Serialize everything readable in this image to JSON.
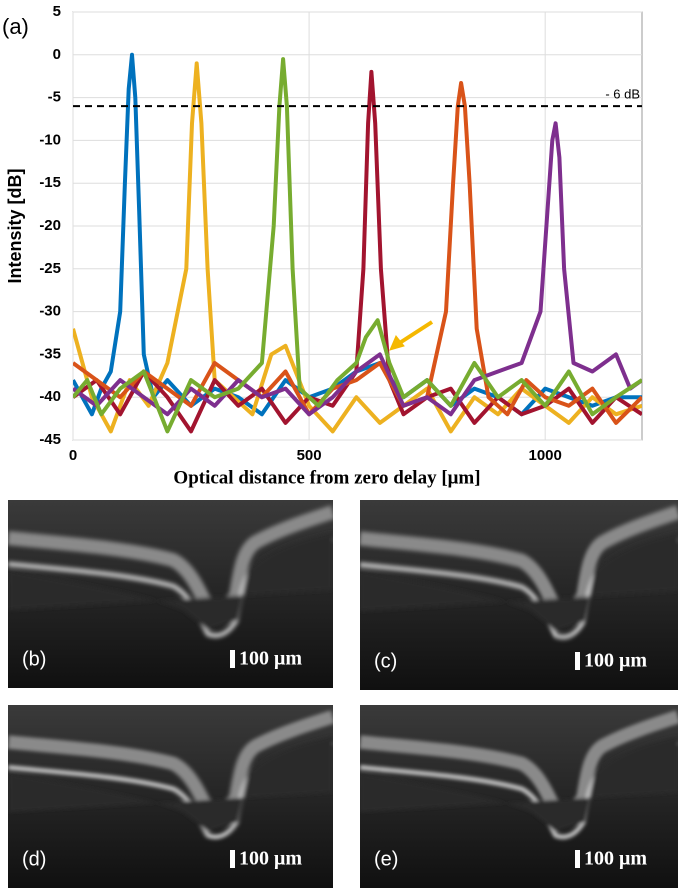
{
  "chart_data": {
    "type": "line",
    "panel_label": "(a)",
    "xlabel": "Optical distance from zero delay [μm]",
    "ylabel": "Intensity [dB]",
    "xlim": [
      0,
      1205
    ],
    "ylim": [
      -45,
      5
    ],
    "xticks": [
      0,
      500,
      1000
    ],
    "yticks": [
      5,
      0,
      -5,
      -10,
      -15,
      -20,
      -25,
      -30,
      -35,
      -40,
      -45
    ],
    "grid": true,
    "reference_line": {
      "value": -6,
      "label": "- 6 dB",
      "color": "#000000"
    },
    "arrow_color": "#f5b800",
    "series": [
      {
        "color": "#0072bd",
        "x": [
          0,
          20,
          40,
          60,
          80,
          100,
          110,
          118,
          125,
          132,
          140,
          150,
          170,
          200,
          250,
          300,
          350,
          400,
          450,
          500,
          550,
          600,
          650,
          700,
          750,
          800,
          850,
          900,
          950,
          1000,
          1050,
          1100,
          1150,
          1205
        ],
        "values": [
          -38,
          -40,
          -42,
          -39,
          -37,
          -30,
          -15,
          -4,
          0,
          -5,
          -18,
          -35,
          -40,
          -38,
          -41,
          -39,
          -40,
          -42,
          -38,
          -40,
          -39,
          -37,
          -36,
          -40,
          -38,
          -41,
          -39,
          -40,
          -42,
          -39,
          -40,
          -41,
          -40,
          -40
        ]
      },
      {
        "color": "#edb120",
        "x": [
          0,
          40,
          80,
          120,
          160,
          200,
          240,
          252,
          262,
          272,
          285,
          300,
          340,
          380,
          420,
          450,
          500,
          550,
          600,
          650,
          700,
          750,
          800,
          850,
          900,
          950,
          1000,
          1050,
          1100,
          1150,
          1205
        ],
        "values": [
          -32,
          -40,
          -44,
          -38,
          -41,
          -36,
          -25,
          -8,
          -1,
          -8,
          -25,
          -38,
          -40,
          -42,
          -35,
          -34,
          -41,
          -44,
          -40,
          -43,
          -41,
          -39,
          -44,
          -40,
          -42,
          -39,
          -41,
          -43,
          -40,
          -42,
          -41
        ]
      },
      {
        "color": "#a2142f",
        "x": [
          0,
          50,
          100,
          150,
          200,
          250,
          300,
          350,
          400,
          450,
          500,
          550,
          600,
          615,
          625,
          632,
          640,
          652,
          670,
          700,
          750,
          800,
          850,
          900,
          950,
          1000,
          1050,
          1100,
          1150,
          1205
        ],
        "values": [
          -40,
          -38,
          -42,
          -37,
          -40,
          -44,
          -38,
          -41,
          -39,
          -43,
          -40,
          -41,
          -37,
          -25,
          -8,
          -2,
          -8,
          -25,
          -38,
          -42,
          -40,
          -39,
          -43,
          -40,
          -42,
          -41,
          -39,
          -43,
          -40,
          -42
        ]
      },
      {
        "color": "#d95319",
        "x": [
          0,
          50,
          100,
          150,
          200,
          250,
          300,
          350,
          400,
          450,
          500,
          550,
          600,
          650,
          700,
          750,
          790,
          805,
          815,
          822,
          830,
          840,
          855,
          880,
          920,
          960,
          1000,
          1050,
          1100,
          1150,
          1205
        ],
        "values": [
          -36,
          -38,
          -40,
          -37,
          -39,
          -41,
          -36,
          -38,
          -40,
          -37,
          -42,
          -39,
          -38,
          -36,
          -41,
          -40,
          -30,
          -15,
          -6,
          -3.3,
          -6,
          -15,
          -32,
          -40,
          -42,
          -38,
          -40,
          -41,
          -39,
          -43,
          -40
        ]
      },
      {
        "color": "#7e2f8e",
        "x": [
          0,
          50,
          100,
          150,
          200,
          250,
          300,
          350,
          400,
          450,
          500,
          550,
          600,
          650,
          700,
          750,
          800,
          850,
          900,
          950,
          990,
          1005,
          1015,
          1022,
          1030,
          1040,
          1060,
          1100,
          1150,
          1180,
          1205
        ],
        "values": [
          -39,
          -41,
          -38,
          -40,
          -42,
          -39,
          -41,
          -38,
          -40,
          -39,
          -42,
          -40,
          -37,
          -35,
          -41,
          -40,
          -42,
          -38,
          -37,
          -36,
          -30,
          -18,
          -10,
          -8,
          -12,
          -25,
          -36,
          -37,
          -35,
          -39,
          -38
        ]
      },
      {
        "color": "#77ac30",
        "x": [
          0,
          30,
          60,
          100,
          150,
          200,
          250,
          300,
          350,
          400,
          425,
          437,
          445,
          453,
          465,
          480,
          520,
          560,
          600,
          620,
          645,
          670,
          700,
          750,
          800,
          850,
          900,
          950,
          1000,
          1050,
          1100,
          1150,
          1205
        ],
        "values": [
          -40,
          -38,
          -42,
          -39,
          -37,
          -44,
          -38,
          -40,
          -39,
          -36,
          -20,
          -6,
          -0.5,
          -6,
          -25,
          -39,
          -41,
          -38,
          -36,
          -33,
          -31,
          -36,
          -40,
          -38,
          -41,
          -36,
          -40,
          -38,
          -41,
          -37,
          -42,
          -40,
          -38
        ]
      }
    ]
  },
  "images": [
    {
      "label": "(b)",
      "scale_bar": "100 μm"
    },
    {
      "label": "(c)",
      "scale_bar": "100 μm"
    },
    {
      "label": "(d)",
      "scale_bar": "100 μm"
    },
    {
      "label": "(e)",
      "scale_bar": "100 μm"
    }
  ]
}
